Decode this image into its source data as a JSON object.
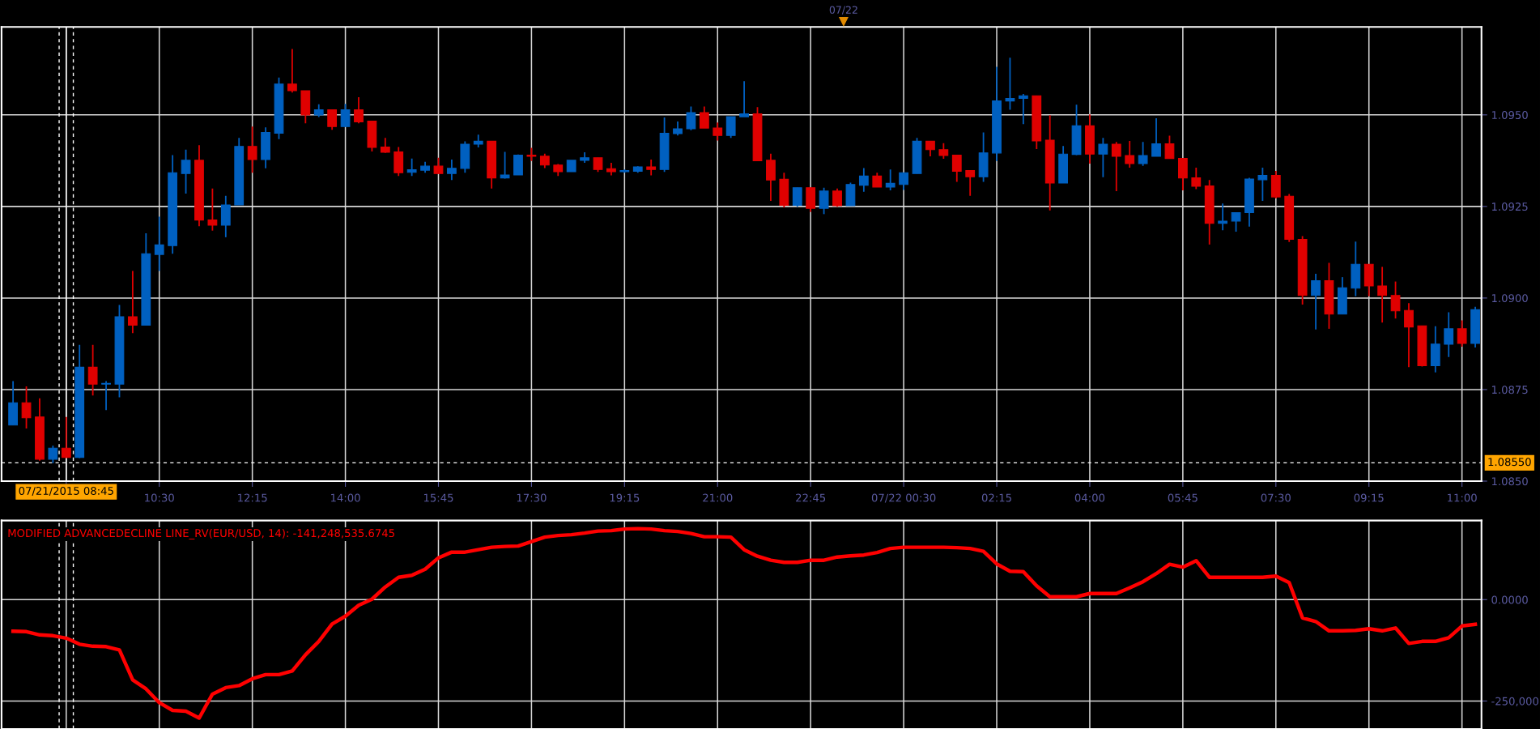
{
  "chart_data": [
    {
      "type": "candlestick",
      "x": [
        "2015-07-21T07:45",
        "2015-07-21T08:00",
        "2015-07-21T08:15",
        "2015-07-21T08:30",
        "2015-07-21T08:45",
        "2015-07-21T09:00",
        "2015-07-21T09:15",
        "2015-07-21T09:30",
        "2015-07-21T09:45",
        "2015-07-21T10:00",
        "2015-07-21T10:15",
        "2015-07-21T10:30",
        "2015-07-21T10:45",
        "2015-07-21T11:00",
        "2015-07-21T11:15",
        "2015-07-21T11:30",
        "2015-07-21T11:45",
        "2015-07-21T12:00",
        "2015-07-21T12:15",
        "2015-07-21T12:30",
        "2015-07-21T12:45",
        "2015-07-21T13:00",
        "2015-07-21T13:15",
        "2015-07-21T13:30",
        "2015-07-21T13:45",
        "2015-07-21T14:00",
        "2015-07-21T14:15",
        "2015-07-21T14:30",
        "2015-07-21T14:45",
        "2015-07-21T15:00",
        "2015-07-21T15:15",
        "2015-07-21T15:30",
        "2015-07-21T15:45",
        "2015-07-21T16:00",
        "2015-07-21T16:15",
        "2015-07-21T16:30",
        "2015-07-21T16:45",
        "2015-07-21T17:00",
        "2015-07-21T17:15",
        "2015-07-21T17:30",
        "2015-07-21T17:45",
        "2015-07-21T18:00",
        "2015-07-21T18:15",
        "2015-07-21T18:30",
        "2015-07-21T18:45",
        "2015-07-21T19:00",
        "2015-07-21T19:15",
        "2015-07-21T19:30",
        "2015-07-21T19:45",
        "2015-07-21T20:00",
        "2015-07-21T20:15",
        "2015-07-21T20:30",
        "2015-07-21T20:45",
        "2015-07-21T21:00",
        "2015-07-21T21:15",
        "2015-07-21T21:30",
        "2015-07-21T21:45",
        "2015-07-21T22:00",
        "2015-07-21T22:15",
        "2015-07-21T22:30",
        "2015-07-21T22:45",
        "2015-07-21T23:00",
        "2015-07-21T23:15",
        "2015-07-21T23:30",
        "2015-07-21T23:45",
        "2015-07-22T00:00",
        "2015-07-22T00:15",
        "2015-07-22T00:30",
        "2015-07-22T00:45",
        "2015-07-22T01:00",
        "2015-07-22T01:15",
        "2015-07-22T01:30",
        "2015-07-22T01:45",
        "2015-07-22T02:00",
        "2015-07-22T02:15",
        "2015-07-22T02:30",
        "2015-07-22T02:45",
        "2015-07-22T03:00",
        "2015-07-22T03:15",
        "2015-07-22T03:30",
        "2015-07-22T03:45",
        "2015-07-22T04:00",
        "2015-07-22T04:15",
        "2015-07-22T04:30",
        "2015-07-22T04:45",
        "2015-07-22T05:00",
        "2015-07-22T05:15",
        "2015-07-22T05:30",
        "2015-07-22T05:45",
        "2015-07-22T06:00",
        "2015-07-22T06:15",
        "2015-07-22T06:30",
        "2015-07-22T06:45",
        "2015-07-22T07:00",
        "2015-07-22T07:15",
        "2015-07-22T07:30",
        "2015-07-22T07:45",
        "2015-07-22T08:00",
        "2015-07-22T08:15",
        "2015-07-22T08:30",
        "2015-07-22T08:45",
        "2015-07-22T09:00",
        "2015-07-22T09:15",
        "2015-07-22T09:30",
        "2015-07-22T09:45",
        "2015-07-22T10:00",
        "2015-07-22T10:15",
        "2015-07-22T10:30",
        "2015-07-22T10:45",
        "2015-07-22T11:00",
        "2015-07-22T11:15"
      ],
      "ohlc": [
        [
          1.08653,
          1.08773,
          1.08653,
          1.08714
        ],
        [
          1.08714,
          1.08759,
          1.08644,
          1.08673
        ],
        [
          1.08675,
          1.08726,
          1.08556,
          1.0856
        ],
        [
          1.0856,
          1.08597,
          1.08549,
          1.0859
        ],
        [
          1.0859,
          1.08675,
          1.08563,
          1.08565
        ],
        [
          1.08565,
          1.08872,
          1.08563,
          1.08811
        ],
        [
          1.08811,
          1.08872,
          1.08734,
          1.08765
        ],
        [
          1.08765,
          1.08773,
          1.08694,
          1.08767
        ],
        [
          1.08765,
          1.08981,
          1.08729,
          1.08949
        ],
        [
          1.08949,
          1.09074,
          1.08904,
          1.08926
        ],
        [
          1.08926,
          1.09177,
          1.08926,
          1.09121
        ],
        [
          1.09119,
          1.09222,
          1.09074,
          1.09145
        ],
        [
          1.09143,
          1.0939,
          1.09121,
          1.09342
        ],
        [
          1.0934,
          1.09405,
          1.09285,
          1.09376
        ],
        [
          1.09376,
          1.09417,
          1.09196,
          1.09213
        ],
        [
          1.09213,
          1.09299,
          1.09184,
          1.09199
        ],
        [
          1.09199,
          1.09279,
          1.09166,
          1.09254
        ],
        [
          1.09254,
          1.09437,
          1.09254,
          1.09414
        ],
        [
          1.09414,
          1.09468,
          1.09342,
          1.09378
        ],
        [
          1.09378,
          1.09466,
          1.09354,
          1.09452
        ],
        [
          1.0945,
          1.09602,
          1.09434,
          1.09584
        ],
        [
          1.09584,
          1.0968,
          1.09561,
          1.09566
        ],
        [
          1.09566,
          1.09566,
          1.09477,
          1.095
        ],
        [
          1.095,
          1.09529,
          1.09494,
          1.09514
        ],
        [
          1.09514,
          1.09514,
          1.09459,
          1.09468
        ],
        [
          1.09468,
          1.0953,
          1.09468,
          1.09514
        ],
        [
          1.09514,
          1.09548,
          1.09477,
          1.09481
        ],
        [
          1.09483,
          1.09483,
          1.094,
          1.09411
        ],
        [
          1.09412,
          1.09437,
          1.09396,
          1.09398
        ],
        [
          1.09399,
          1.09412,
          1.09333,
          1.09342
        ],
        [
          1.09343,
          1.09381,
          1.09333,
          1.0935
        ],
        [
          1.09349,
          1.09372,
          1.09342,
          1.0936
        ],
        [
          1.0936,
          1.09383,
          1.0934,
          1.0934
        ],
        [
          1.0934,
          1.09378,
          1.09322,
          1.09354
        ],
        [
          1.09354,
          1.09428,
          1.09342,
          1.0942
        ],
        [
          1.0942,
          1.09446,
          1.09411,
          1.09428
        ],
        [
          1.09428,
          1.09428,
          1.09299,
          1.09328
        ],
        [
          1.09328,
          1.09399,
          1.09326,
          1.09336
        ],
        [
          1.09336,
          1.09392,
          1.09336,
          1.0939
        ],
        [
          1.0939,
          1.0941,
          1.09374,
          1.09387
        ],
        [
          1.09387,
          1.09394,
          1.09355,
          1.09363
        ],
        [
          1.09363,
          1.09366,
          1.09333,
          1.09345
        ],
        [
          1.09345,
          1.09376,
          1.09345,
          1.09376
        ],
        [
          1.09376,
          1.09398,
          1.09369,
          1.09383
        ],
        [
          1.09383,
          1.09383,
          1.09344,
          1.09351
        ],
        [
          1.09353,
          1.09369,
          1.09335,
          1.09345
        ],
        [
          1.09345,
          1.09351,
          1.09342,
          1.09348
        ],
        [
          1.09346,
          1.0936,
          1.09342,
          1.09358
        ],
        [
          1.09358,
          1.09378,
          1.09335,
          1.09351
        ],
        [
          1.09351,
          1.09493,
          1.09344,
          1.0945
        ],
        [
          1.09449,
          1.09482,
          1.09444,
          1.09462
        ],
        [
          1.09462,
          1.09523,
          1.09458,
          1.09506
        ],
        [
          1.09506,
          1.09523,
          1.09464,
          1.09464
        ],
        [
          1.09464,
          1.09479,
          1.0943,
          1.09444
        ],
        [
          1.09444,
          1.09495,
          1.09437,
          1.09495
        ],
        [
          1.09495,
          1.09592,
          1.09495,
          1.09503
        ],
        [
          1.09503,
          1.09521,
          1.09375,
          1.09375
        ],
        [
          1.09376,
          1.09394,
          1.09265,
          1.09322
        ],
        [
          1.09324,
          1.09342,
          1.09247,
          1.09253
        ],
        [
          1.09253,
          1.09301,
          1.09249,
          1.09301
        ],
        [
          1.09301,
          1.09301,
          1.09235,
          1.09245
        ],
        [
          1.09245,
          1.09301,
          1.09229,
          1.09292
        ],
        [
          1.09292,
          1.09299,
          1.09249,
          1.09252
        ],
        [
          1.09252,
          1.09315,
          1.09252,
          1.0931
        ],
        [
          1.09308,
          1.09355,
          1.0929,
          1.09333
        ],
        [
          1.09333,
          1.09342,
          1.09303,
          1.09303
        ],
        [
          1.09303,
          1.09351,
          1.09294,
          1.09313
        ],
        [
          1.0931,
          1.09342,
          1.09295,
          1.09342
        ],
        [
          1.0934,
          1.09437,
          1.0934,
          1.09428
        ],
        [
          1.09428,
          1.09428,
          1.09387,
          1.09405
        ],
        [
          1.09405,
          1.09423,
          1.0938,
          1.09389
        ],
        [
          1.0939,
          1.0939,
          1.09317,
          1.09346
        ],
        [
          1.09348,
          1.09348,
          1.09279,
          1.09331
        ],
        [
          1.09331,
          1.09452,
          1.09317,
          1.09396
        ],
        [
          1.09396,
          1.09631,
          1.09374,
          1.09538
        ],
        [
          1.09538,
          1.09656,
          1.09514,
          1.09545
        ],
        [
          1.09545,
          1.09557,
          1.09475,
          1.09552
        ],
        [
          1.09552,
          1.09552,
          1.09407,
          1.09429
        ],
        [
          1.09431,
          1.09499,
          1.09239,
          1.09314
        ],
        [
          1.09314,
          1.09415,
          1.09314,
          1.09393
        ],
        [
          1.09392,
          1.09528,
          1.0939,
          1.0947
        ],
        [
          1.0947,
          1.09501,
          1.09367,
          1.09393
        ],
        [
          1.09393,
          1.09437,
          1.0933,
          1.0942
        ],
        [
          1.0942,
          1.09426,
          1.09292,
          1.09387
        ],
        [
          1.09389,
          1.09429,
          1.09356,
          1.09367
        ],
        [
          1.09367,
          1.09426,
          1.09361,
          1.09389
        ],
        [
          1.09387,
          1.09491,
          1.09387,
          1.09421
        ],
        [
          1.09421,
          1.09443,
          1.09381,
          1.09381
        ],
        [
          1.09381,
          1.09381,
          1.09294,
          1.09328
        ],
        [
          1.09328,
          1.09356,
          1.09297,
          1.09305
        ],
        [
          1.09306,
          1.09322,
          1.09146,
          1.09204
        ],
        [
          1.09204,
          1.09258,
          1.09185,
          1.0921
        ],
        [
          1.0921,
          1.09234,
          1.09181,
          1.09233
        ],
        [
          1.09233,
          1.09328,
          1.09195,
          1.09325
        ],
        [
          1.09323,
          1.09356,
          1.09265,
          1.09335
        ],
        [
          1.09335,
          1.09347,
          1.09272,
          1.09276
        ],
        [
          1.09278,
          1.09284,
          1.09153,
          1.0916
        ],
        [
          1.0916,
          1.09169,
          1.08982,
          1.09007
        ],
        [
          1.09007,
          1.09066,
          1.08914,
          1.09047
        ],
        [
          1.09047,
          1.09096,
          1.08916,
          1.08956
        ],
        [
          1.08956,
          1.09057,
          1.08956,
          1.09028
        ],
        [
          1.09027,
          1.09154,
          1.09005,
          1.09092
        ],
        [
          1.09092,
          1.09092,
          1.09005,
          1.09033
        ],
        [
          1.09033,
          1.09085,
          1.08933,
          1.09007
        ],
        [
          1.09007,
          1.09045,
          1.08944,
          1.08965
        ],
        [
          1.08966,
          1.08986,
          1.08811,
          1.08921
        ],
        [
          1.08924,
          1.08924,
          1.08813,
          1.08815
        ],
        [
          1.08815,
          1.08923,
          1.08797,
          1.08874
        ],
        [
          1.08874,
          1.08961,
          1.08839,
          1.08916
        ],
        [
          1.08916,
          1.08939,
          1.08867,
          1.08876
        ],
        [
          1.08876,
          1.08976,
          1.08865,
          1.08968
        ]
      ],
      "colors": [
        "#0060c0",
        "#e00000",
        "#e00000",
        "#0060c0",
        "#e00000",
        "#0060c0",
        "#e00000",
        "#0060c0",
        "#0060c0",
        "#e00000",
        "#0060c0",
        "#0060c0",
        "#0060c0",
        "#0060c0",
        "#e00000",
        "#e00000",
        "#0060c0",
        "#0060c0",
        "#e00000",
        "#0060c0",
        "#0060c0",
        "#e00000",
        "#e00000",
        "#0060c0",
        "#e00000",
        "#0060c0",
        "#e00000",
        "#e00000",
        "#e00000",
        "#e00000",
        "#0060c0",
        "#0060c0",
        "#e00000",
        "#0060c0",
        "#0060c0",
        "#0060c0",
        "#e00000",
        "#0060c0",
        "#0060c0",
        "#e00000",
        "#e00000",
        "#e00000",
        "#0060c0",
        "#0060c0",
        "#e00000",
        "#e00000",
        "#0060c0",
        "#0060c0",
        "#e00000",
        "#0060c0",
        "#0060c0",
        "#0060c0",
        "#e00000",
        "#e00000",
        "#0060c0",
        "#0060c0",
        "#e00000",
        "#e00000",
        "#e00000",
        "#0060c0",
        "#e00000",
        "#0060c0",
        "#e00000",
        "#0060c0",
        "#0060c0",
        "#e00000",
        "#0060c0",
        "#0060c0",
        "#0060c0",
        "#e00000",
        "#e00000",
        "#e00000",
        "#e00000",
        "#0060c0",
        "#0060c0",
        "#0060c0",
        "#0060c0",
        "#e00000",
        "#e00000",
        "#0060c0",
        "#0060c0",
        "#e00000",
        "#0060c0",
        "#e00000",
        "#e00000",
        "#0060c0",
        "#0060c0",
        "#e00000",
        "#e00000",
        "#e00000",
        "#e00000",
        "#0060c0",
        "#0060c0",
        "#0060c0",
        "#0060c0",
        "#e00000",
        "#e00000",
        "#e00000",
        "#0060c0",
        "#e00000",
        "#0060c0",
        "#0060c0",
        "#e00000",
        "#e00000",
        "#e00000",
        "#e00000",
        "#e00000",
        "#0060c0",
        "#0060c0",
        "#e00000",
        "#0060c0"
      ],
      "xlim": [
        "2015-07-21T07:32",
        "2015-07-22T11:22"
      ],
      "ylim": [
        1.085,
        1.0974
      ],
      "xticks": [
        {
          "value": "2015-07-21T08:45",
          "label": null
        },
        {
          "value": "2015-07-21T10:30",
          "label": "10:30"
        },
        {
          "value": "2015-07-21T12:15",
          "label": "12:15"
        },
        {
          "value": "2015-07-21T14:00",
          "label": "14:00"
        },
        {
          "value": "2015-07-21T15:45",
          "label": "15:45"
        },
        {
          "value": "2015-07-21T17:30",
          "label": "17:30"
        },
        {
          "value": "2015-07-21T19:15",
          "label": "19:15"
        },
        {
          "value": "2015-07-21T21:00",
          "label": "21:00"
        },
        {
          "value": "2015-07-21T22:45",
          "label": "22:45"
        },
        {
          "value": "2015-07-22T00:30",
          "label": "07/22 00:30"
        },
        {
          "value": "2015-07-22T02:15",
          "label": "02:15"
        },
        {
          "value": "2015-07-22T04:00",
          "label": "04:00"
        },
        {
          "value": "2015-07-22T05:45",
          "label": "05:45"
        },
        {
          "value": "2015-07-22T07:30",
          "label": "07:30"
        },
        {
          "value": "2015-07-22T09:15",
          "label": "09:15"
        },
        {
          "value": "2015-07-22T11:00",
          "label": "11:00"
        }
      ],
      "yticks": [
        {
          "value": 1.085,
          "label": "1.0850"
        },
        {
          "value": 1.0875,
          "label": "1.0875"
        },
        {
          "value": 1.09,
          "label": "1.0900"
        },
        {
          "value": 1.0925,
          "label": "1.0925"
        },
        {
          "value": 1.095,
          "label": "1.0950"
        }
      ],
      "grid": true,
      "ref_lines": [
        {
          "axis": "y",
          "value": 1.0855,
          "label": "1.08550",
          "color": "#ffffff",
          "line_style": "dashed"
        },
        {
          "axis": "x",
          "value": "2015-07-21T08:37",
          "color": "#ffffff",
          "line_style": "dashed"
        },
        {
          "axis": "x",
          "value": "2015-07-21T08:45",
          "label": "07/21/2015 08:45",
          "color": "#ffffff"
        },
        {
          "axis": "x",
          "value": "2015-07-21T08:53",
          "color": "#ffffff",
          "line_style": "dashed"
        }
      ],
      "annotations": [
        "07/22"
      ]
    },
    {
      "type": "line",
      "x": [
        "2015-07-21T07:45",
        "2015-07-21T08:00",
        "2015-07-21T08:15",
        "2015-07-21T08:30",
        "2015-07-21T08:45",
        "2015-07-21T09:00",
        "2015-07-21T09:15",
        "2015-07-21T09:30",
        "2015-07-21T09:45",
        "2015-07-21T10:00",
        "2015-07-21T10:15",
        "2015-07-21T10:30",
        "2015-07-21T10:45",
        "2015-07-21T11:00",
        "2015-07-21T11:15",
        "2015-07-21T11:30",
        "2015-07-21T11:45",
        "2015-07-21T12:00",
        "2015-07-21T12:15",
        "2015-07-21T12:30",
        "2015-07-21T12:45",
        "2015-07-21T13:00",
        "2015-07-21T13:15",
        "2015-07-21T13:30",
        "2015-07-21T13:45",
        "2015-07-21T14:00",
        "2015-07-21T14:15",
        "2015-07-21T14:30",
        "2015-07-21T14:45",
        "2015-07-21T15:00",
        "2015-07-21T15:15",
        "2015-07-21T15:30",
        "2015-07-21T15:45",
        "2015-07-21T16:00",
        "2015-07-21T16:15",
        "2015-07-21T16:30",
        "2015-07-21T16:45",
        "2015-07-21T17:00",
        "2015-07-21T17:15",
        "2015-07-21T17:30",
        "2015-07-21T17:45",
        "2015-07-21T18:00",
        "2015-07-21T18:15",
        "2015-07-21T18:30",
        "2015-07-21T18:45",
        "2015-07-21T19:00",
        "2015-07-21T19:15",
        "2015-07-21T19:30",
        "2015-07-21T19:45",
        "2015-07-21T20:00",
        "2015-07-21T20:15",
        "2015-07-21T20:30",
        "2015-07-21T20:45",
        "2015-07-21T21:00",
        "2015-07-21T21:15",
        "2015-07-21T21:30",
        "2015-07-21T21:45",
        "2015-07-21T22:00",
        "2015-07-21T22:15",
        "2015-07-21T22:30",
        "2015-07-21T22:45",
        "2015-07-21T23:00",
        "2015-07-21T23:15",
        "2015-07-21T23:30",
        "2015-07-21T23:45",
        "2015-07-22T00:00",
        "2015-07-22T00:15",
        "2015-07-22T00:30",
        "2015-07-22T00:45",
        "2015-07-22T01:00",
        "2015-07-22T01:15",
        "2015-07-22T01:30",
        "2015-07-22T01:45",
        "2015-07-22T02:00",
        "2015-07-22T02:15",
        "2015-07-22T02:30",
        "2015-07-22T02:45",
        "2015-07-22T03:00",
        "2015-07-22T03:15",
        "2015-07-22T03:30",
        "2015-07-22T03:45",
        "2015-07-22T04:00",
        "2015-07-22T04:15",
        "2015-07-22T04:30",
        "2015-07-22T04:45",
        "2015-07-22T05:00",
        "2015-07-22T05:15",
        "2015-07-22T05:30",
        "2015-07-22T05:45",
        "2015-07-22T06:00",
        "2015-07-22T06:15",
        "2015-07-22T06:30",
        "2015-07-22T06:45",
        "2015-07-22T07:00",
        "2015-07-22T07:15",
        "2015-07-22T07:30",
        "2015-07-22T07:45",
        "2015-07-22T08:00",
        "2015-07-22T08:15",
        "2015-07-22T08:30",
        "2015-07-22T08:45",
        "2015-07-22T09:00",
        "2015-07-22T09:15",
        "2015-07-22T09:30",
        "2015-07-22T09:45",
        "2015-07-22T10:00",
        "2015-07-22T10:15",
        "2015-07-22T10:30",
        "2015-07-22T10:45",
        "2015-07-22T11:00",
        "2015-07-22T11:15"
      ],
      "series": [
        {
          "name": "MODIFIED ADVANCEDECLINE LINE_RV(EUR/USD, 14): -141,248,535.6745",
          "color": "#ff0000",
          "values": [
            -78000,
            -79000,
            -87000,
            -89000,
            -95000,
            -110000,
            -115000,
            -116000,
            -124000,
            -198000,
            -220000,
            -254000,
            -273000,
            -275000,
            -292000,
            -233000,
            -217000,
            -212000,
            -195000,
            -185000,
            -185000,
            -176000,
            -136000,
            -103000,
            -60000,
            -41000,
            -14000,
            1000,
            31000,
            55000,
            60000,
            75000,
            103000,
            117000,
            117000,
            123000,
            129000,
            131000,
            132000,
            143000,
            154000,
            158000,
            160000,
            164000,
            169000,
            170000,
            174000,
            175000,
            174000,
            170000,
            168000,
            163000,
            155000,
            155000,
            154000,
            123000,
            107000,
            97000,
            92000,
            92000,
            97000,
            97000,
            105000,
            108000,
            110000,
            116000,
            126000,
            129000,
            129000,
            129000,
            129000,
            128000,
            126000,
            119000,
            88000,
            70000,
            69000,
            34000,
            7000,
            7000,
            7000,
            15000,
            15000,
            15000,
            29000,
            44000,
            64000,
            87000,
            80000,
            96000,
            55000,
            55000,
            55000,
            55000,
            55000,
            58000,
            42000,
            -45000,
            -54000,
            -77000,
            -77000,
            -76000,
            -72000,
            -77000,
            -70000,
            -108000,
            -103000,
            -103000,
            -94000,
            -65000,
            -61000
          ]
        }
      ],
      "xlim": [
        "2015-07-21T07:32",
        "2015-07-22T11:22"
      ],
      "ylim": [
        -319000,
        195000
      ],
      "xticks": [
        {
          "value": "2015-07-21T08:45",
          "label": null
        },
        {
          "value": "2015-07-21T10:30",
          "label": null
        },
        {
          "value": "2015-07-21T12:15",
          "label": null
        },
        {
          "value": "2015-07-21T14:00",
          "label": null
        },
        {
          "value": "2015-07-21T15:45",
          "label": null
        },
        {
          "value": "2015-07-21T17:30",
          "label": null
        },
        {
          "value": "2015-07-21T19:15",
          "label": null
        },
        {
          "value": "2015-07-21T21:00",
          "label": null
        },
        {
          "value": "2015-07-21T22:45",
          "label": null
        },
        {
          "value": "2015-07-22T00:30",
          "label": null
        },
        {
          "value": "2015-07-22T02:15",
          "label": null
        },
        {
          "value": "2015-07-22T04:00",
          "label": null
        },
        {
          "value": "2015-07-22T05:45",
          "label": null
        },
        {
          "value": "2015-07-22T07:30",
          "label": null
        },
        {
          "value": "2015-07-22T09:15",
          "label": null
        },
        {
          "value": "2015-07-22T11:00",
          "label": null
        }
      ],
      "yticks": [
        {
          "value": -250000,
          "label": "-250,000"
        },
        {
          "value": 0,
          "label": "0.0000"
        }
      ],
      "grid": true,
      "tick_labels": "y",
      "ref_lines": [
        {
          "axis": "x",
          "value": "2015-07-21T08:37",
          "color": "#ffffff",
          "line_style": "dashed"
        },
        {
          "axis": "x",
          "value": "2015-07-21T08:53",
          "color": "#ffffff",
          "line_style": "dashed"
        }
      ]
    }
  ]
}
